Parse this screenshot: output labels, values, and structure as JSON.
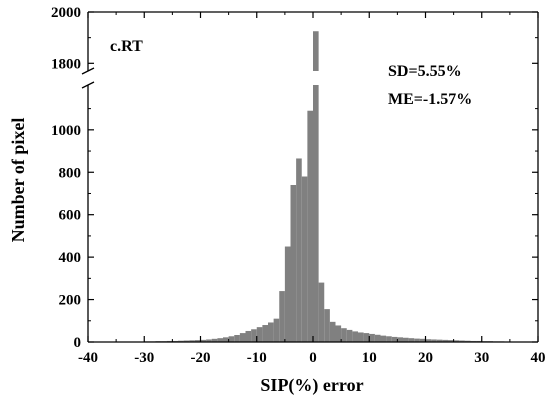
{
  "chart_data": {
    "type": "bar",
    "panel_label": "c.RT",
    "xlabel": "SIP(%) error",
    "ylabel": "Number of pixel",
    "xlim": [
      -40,
      40
    ],
    "x_ticks": [
      -40,
      -30,
      -20,
      -10,
      0,
      10,
      20,
      30,
      40
    ],
    "y_ticks_lower": [
      0,
      200,
      400,
      600,
      800,
      1000
    ],
    "y_ticks_upper": [
      1800,
      2000
    ],
    "y_axis_break": {
      "lower_range": [
        0,
        1150
      ],
      "upper_range": [
        1770,
        2000
      ]
    },
    "bin_width": 1,
    "bar_color": "#808080",
    "annotations": [
      "SD=5.55%",
      "ME=-1.57%"
    ],
    "bins": {
      "x_start": [
        -30,
        -29,
        -28,
        -27,
        -26,
        -25,
        -24,
        -23,
        -22,
        -21,
        -20,
        -19,
        -18,
        -17,
        -16,
        -15,
        -14,
        -13,
        -12,
        -11,
        -10,
        -9,
        -8,
        -7,
        -6,
        -5,
        -4,
        -3,
        -2,
        -1,
        0,
        1,
        2,
        3,
        4,
        5,
        6,
        7,
        8,
        9,
        10,
        11,
        12,
        13,
        14,
        15,
        16,
        17,
        18,
        19,
        20,
        21,
        22,
        23,
        24,
        25,
        26,
        27,
        28,
        29,
        30,
        31,
        32,
        33,
        34
      ],
      "counts": [
        3,
        3,
        4,
        4,
        5,
        5,
        6,
        7,
        8,
        9,
        10,
        12,
        15,
        18,
        22,
        27,
        33,
        42,
        52,
        60,
        70,
        80,
        92,
        110,
        240,
        450,
        740,
        865,
        780,
        1090,
        1925,
        280,
        155,
        95,
        78,
        65,
        57,
        50,
        45,
        42,
        38,
        34,
        30,
        27,
        24,
        22,
        20,
        18,
        16,
        15,
        13,
        12,
        11,
        10,
        9,
        8,
        7,
        6,
        5,
        5,
        4,
        4,
        3,
        3,
        2
      ]
    }
  }
}
